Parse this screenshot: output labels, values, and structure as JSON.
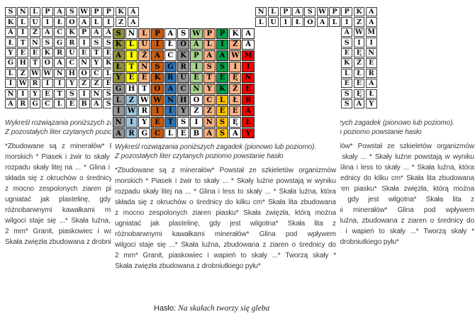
{
  "puzzle": {
    "rows": [
      "S N L P A S W P P K A",
      "K L U I Ł O A L I Z A",
      "A I Ż A C K P A A W M",
      "Ł T N S G R I S S I I",
      "Y E E K R U E T E Ę N",
      "G H T O A C N Y K Ż E",
      "L Z W W N H O C L Ł R",
      "I W R I I Y Z Z E E A",
      "N I Y E T S I N S Ę Ł",
      "A R G C L E B A S A Y"
    ],
    "solution_colors": [
      "o w p d w w lg p dg w w",
      "o y p d w g lg p dg p w",
      "o y p d w g lg p dg p r",
      "o y p d b g lg p dg p r",
      "o y p d b g lg p dg p r",
      "g w w d b g lg p dg p r",
      "g lb w d b g w p au p r",
      "g lb w d b g w p au p r",
      "g lb w d b w w p au w r",
      "g lb w d w w w p au w r"
    ],
    "palette": {
      "w": "#ffffff",
      "o": "#8e8e3c",
      "y": "#ffff00",
      "p": "#f4b183",
      "d": "#c55a11",
      "b": "#2e74b5",
      "g": "#949494",
      "lg": "#a9d18e",
      "dg": "#00a14a",
      "au": "#ffc000",
      "lb": "#9fc5de",
      "r": "#ff0000"
    }
  },
  "worksheet": {
    "caption_lines": [
      "Wykreśl rozwiązania poniższych zagadek (pionowo lub poziomo).",
      "Z pozostałych liter czytanych poziomo powstanie hasło"
    ],
    "clue_lines": [
      "*Zbudowane są z minerałów* Powstał ze szkieletów organizmów",
      "morskich * Piasek i żwir to skały ... * Skały luźne powstają w wyniku",
      "rozpadu skały litej na ... * Glina i less to skały ... * Skała luźna, która",
      "składa się z okruchów o średnicy do kilku cm* Skała lita zbudowana",
      "z mocno zespolonych ziaren piasku* Skała zwięzła, którą można",
      "ugniatać jak plastelinę, gdy jest wilgotna* Skała lita z",
      "różnobarwnymi kawałkami minerałów* Glina pod wpływem",
      "wilgoci staje się ...* Skała luźna, zbudowana z ziaren o średnicy do",
      "2 mm* Granit, piaskowiec i wapień to skały ...* Tworzą skały *",
      "Skała zwięzła zbudowana z drobniutkiego pyłu*"
    ],
    "haslo": {
      "label": "Hasło:",
      "value": "Na skałach tworzy się gleba"
    }
  }
}
